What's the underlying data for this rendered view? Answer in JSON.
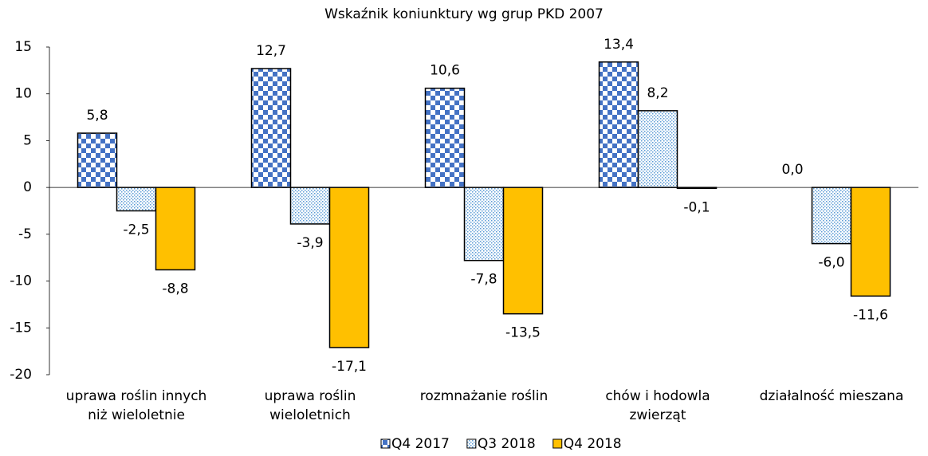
{
  "chart_data": {
    "type": "bar",
    "title": "Wskaźnik koniunktury wg grup PKD 2007",
    "categories": [
      "uprawa roślin innych niż wieloletnie",
      "uprawa roślin wieloletnich",
      "rozmnażanie roślin",
      "chów i hodowla zwierząt",
      "działalność mieszana"
    ],
    "series": [
      {
        "name": "Q4 2017",
        "color": "#4472c4",
        "values": [
          5.8,
          12.7,
          10.6,
          13.4,
          0.0
        ],
        "value_labels": [
          "5,8",
          "12,7",
          "10,6",
          "13,4",
          "0,0"
        ]
      },
      {
        "name": "Q3 2018",
        "color": "#5b9bd5",
        "values": [
          -2.5,
          -3.9,
          -7.8,
          8.2,
          -6.0
        ],
        "value_labels": [
          "-2,5",
          "-3,9",
          "-7,8",
          "8,2",
          "-6,0"
        ]
      },
      {
        "name": "Q4 2018",
        "color": "#ffc000",
        "values": [
          -8.8,
          -17.1,
          -13.5,
          -0.1,
          -11.6
        ],
        "value_labels": [
          "-8,8",
          "-17,1",
          "-13,5",
          "-0,1",
          "-11,6"
        ]
      }
    ],
    "ylim": [
      -20,
      15
    ],
    "yticks": [
      -20,
      -15,
      -10,
      -5,
      0,
      5,
      10,
      15
    ],
    "grid": false,
    "legend": "bottom"
  }
}
